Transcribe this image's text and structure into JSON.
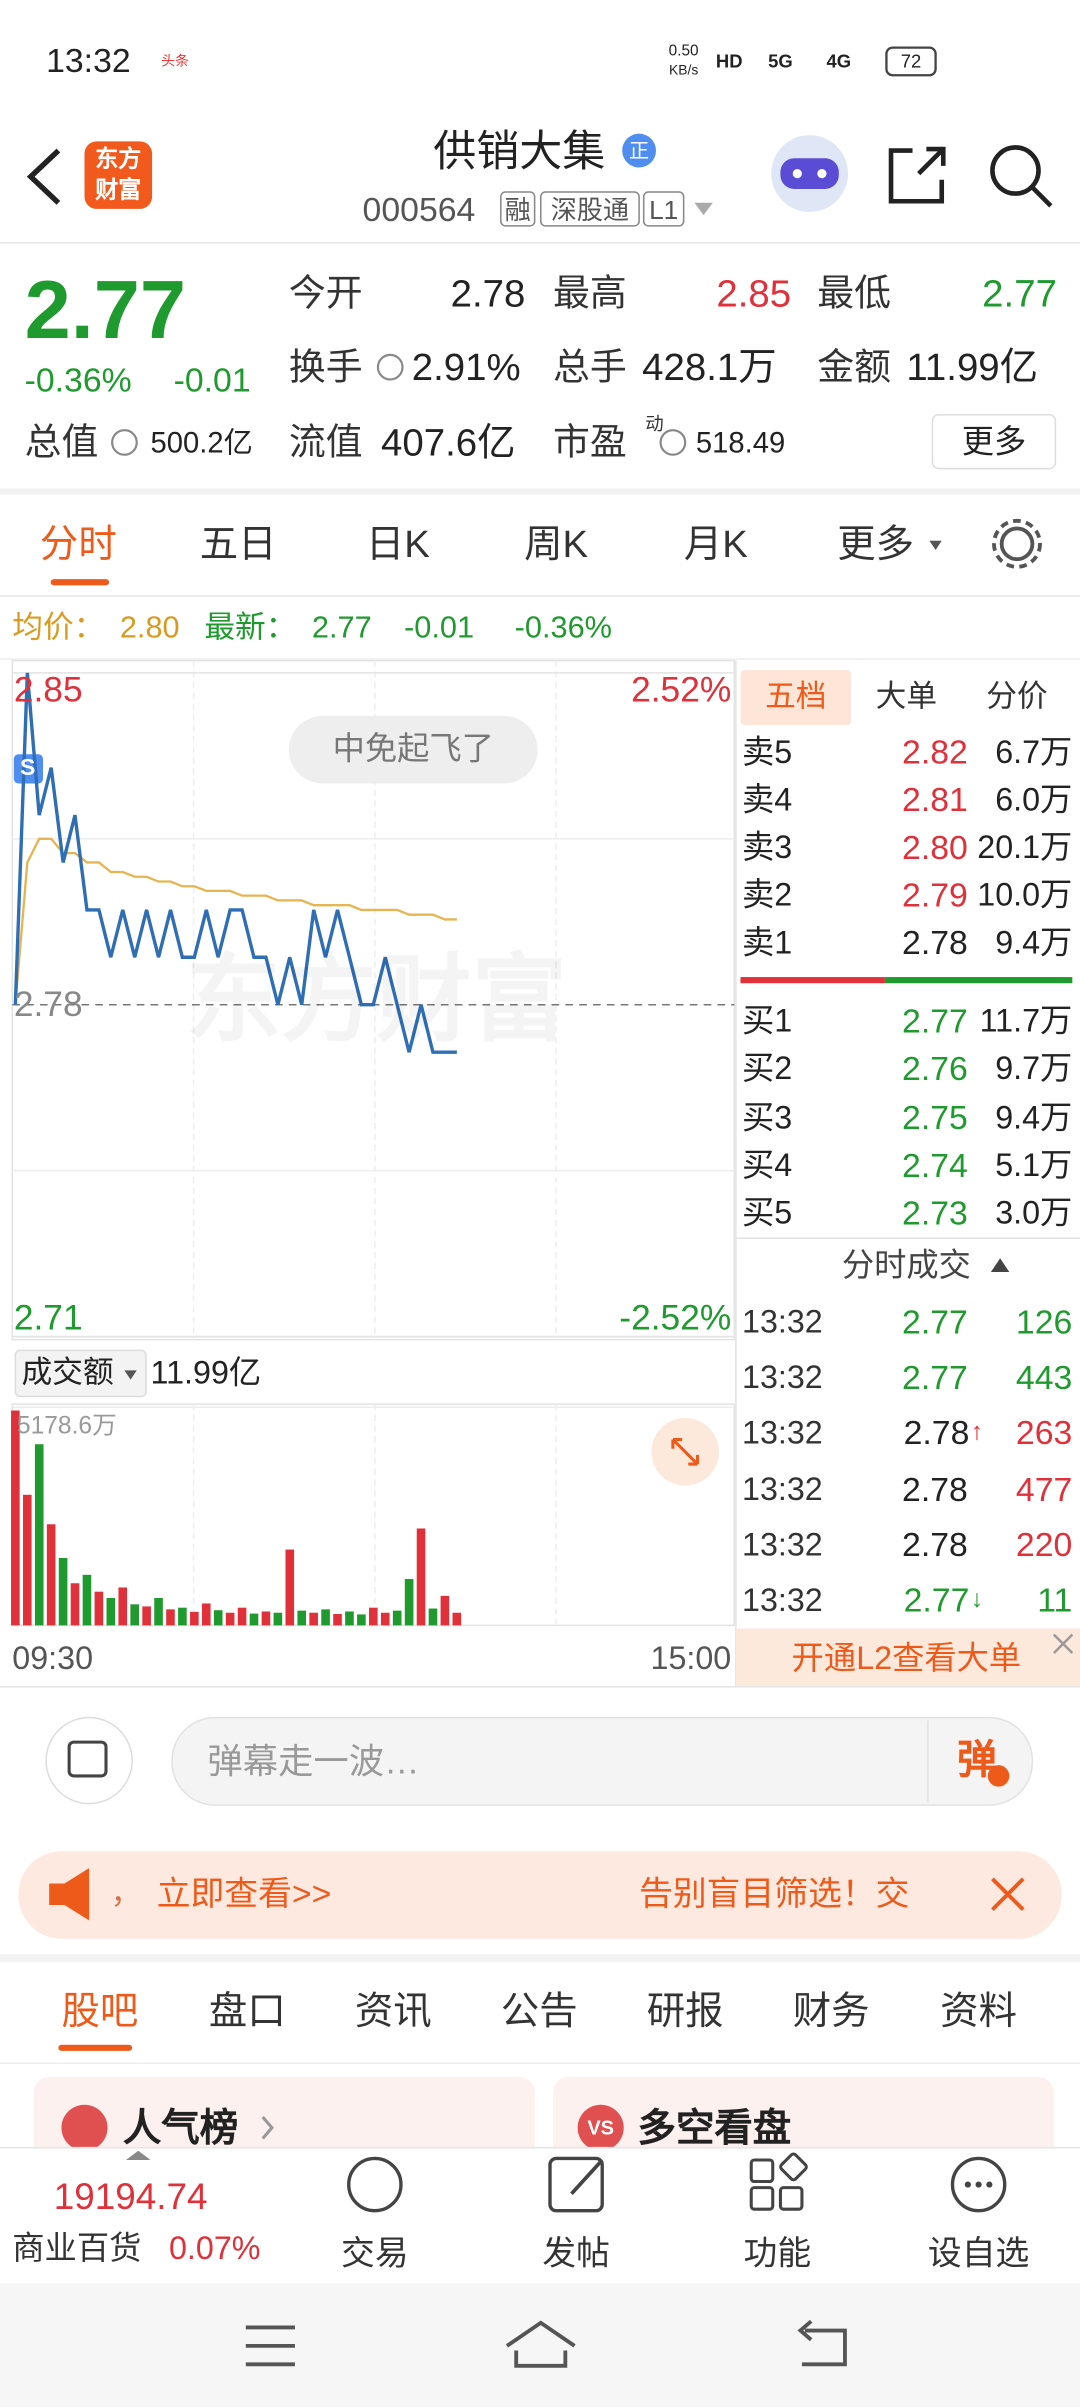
{
  "status_bar": {
    "time": "13:32",
    "badge": "头条",
    "net_speed": "0.50",
    "net_unit": "KB/s",
    "network": [
      "HD",
      "5G",
      "4G"
    ],
    "battery": "72"
  },
  "header": {
    "logo": [
      "东方",
      "财富"
    ],
    "title": "供销大集",
    "title_badge": "正",
    "code": "000564",
    "tags": [
      "融",
      "深股通",
      "L1"
    ]
  },
  "quote": {
    "price": "2.77",
    "change_pct": "-0.36%",
    "change": "-0.01",
    "stats": [
      {
        "label": "今开",
        "value": "2.78",
        "color": "#222222"
      },
      {
        "label": "最高",
        "value": "2.85",
        "color": "#e0303a"
      },
      {
        "label": "最低",
        "value": "2.77",
        "color": "#1f9a2e"
      },
      {
        "label": "换手",
        "value": "2.91%",
        "color": "#222222"
      },
      {
        "label": "总手",
        "value": "428.1万",
        "color": "#222222"
      },
      {
        "label": "金额",
        "value": "11.99亿",
        "color": "#222222"
      },
      {
        "label": "总值",
        "value": "500.2亿",
        "color": "#222222"
      },
      {
        "label": "流值",
        "value": "407.6亿",
        "color": "#222222"
      },
      {
        "label": "市盈",
        "label_sup": "动",
        "value": "518.49",
        "color": "#222222"
      }
    ],
    "more": "更多"
  },
  "chart_tabs": {
    "items": [
      "分时",
      "五日",
      "日K",
      "周K",
      "月K",
      "更多"
    ],
    "active": 0
  },
  "summary": {
    "avg_label": "均价：",
    "avg": "2.80",
    "last_label": "最新：",
    "last": "2.77",
    "change": "-0.01",
    "change_pct": "-0.36%"
  },
  "intraday_chart": {
    "type": "line",
    "color": "#2f6db5",
    "avg_color": "#e6b450",
    "price": [
      2.78,
      2.85,
      2.82,
      2.83,
      2.81,
      2.82,
      2.8,
      2.8,
      2.79,
      2.8,
      2.79,
      2.8,
      2.79,
      2.8,
      2.79,
      2.79,
      2.8,
      2.79,
      2.8,
      2.8,
      2.79,
      2.79,
      2.78,
      2.79,
      2.78,
      2.8,
      2.79,
      2.8,
      2.79,
      2.78,
      2.78,
      2.79,
      2.78,
      2.77,
      2.78,
      2.77,
      2.77,
      2.77
    ],
    "average": [
      2.78,
      2.81,
      2.815,
      2.815,
      2.812,
      2.812,
      2.81,
      2.81,
      2.808,
      2.808,
      2.807,
      2.807,
      2.806,
      2.806,
      2.805,
      2.805,
      2.804,
      2.804,
      2.804,
      2.803,
      2.803,
      2.803,
      2.802,
      2.802,
      2.802,
      2.801,
      2.801,
      2.801,
      2.801,
      2.8,
      2.8,
      2.8,
      2.8,
      2.799,
      2.799,
      2.799,
      2.798,
      2.798
    ],
    "ylim": [
      2.71,
      2.85
    ],
    "yticks": [
      2.85,
      2.78,
      2.71
    ],
    "pct_ticks": [
      "2.52%",
      "-2.52%"
    ],
    "annotation": "中免起飞了",
    "marker": "S",
    "watermark": "东方财富",
    "x_labels": [
      "09:30",
      "15:00"
    ],
    "volume": {
      "label": "成交额",
      "total": "11.99亿",
      "up_color": "#e0303a",
      "down_color": "#1f9a2e",
      "ylim": [
        0,
        5178.6
      ],
      "yticks": [
        {
          "value": 5178.6,
          "label": "5178.6万"
        }
      ],
      "values": [
        5100,
        3100,
        4300,
        2400,
        1600,
        1000,
        1200,
        800,
        650,
        900,
        500,
        450,
        650,
        380,
        420,
        320,
        520,
        360,
        300,
        420,
        280,
        330,
        300,
        1800,
        350,
        300,
        380,
        270,
        330,
        260,
        420,
        300,
        350,
        1100,
        2300,
        400,
        700,
        300
      ]
    }
  },
  "order_panel": {
    "tabs": [
      "五档",
      "大单",
      "分价"
    ],
    "active": 0,
    "asks": [
      {
        "label": "卖5",
        "price": "2.82",
        "volume": "6.7万",
        "color": "#e0303a"
      },
      {
        "label": "卖4",
        "price": "2.81",
        "volume": "6.0万",
        "color": "#e0303a"
      },
      {
        "label": "卖3",
        "price": "2.80",
        "volume": "20.1万",
        "color": "#e0303a"
      },
      {
        "label": "卖2",
        "price": "2.79",
        "volume": "10.0万",
        "color": "#e0303a"
      },
      {
        "label": "卖1",
        "price": "2.78",
        "volume": "9.4万",
        "color": "#222222"
      }
    ],
    "bids": [
      {
        "label": "买1",
        "price": "2.77",
        "volume": "11.7万",
        "color": "#1f9a2e"
      },
      {
        "label": "买2",
        "price": "2.76",
        "volume": "9.7万",
        "color": "#1f9a2e"
      },
      {
        "label": "买3",
        "price": "2.75",
        "volume": "9.4万",
        "color": "#1f9a2e"
      },
      {
        "label": "买4",
        "price": "2.74",
        "volume": "5.1万",
        "color": "#1f9a2e"
      },
      {
        "label": "买5",
        "price": "2.73",
        "volume": "3.0万",
        "color": "#1f9a2e"
      }
    ],
    "trades_title": "分时成交",
    "trades": [
      {
        "time": "13:32",
        "price": "2.77",
        "volume": "126",
        "color": "#1f9a2e",
        "volume_color": "#1f9a2e"
      },
      {
        "time": "13:32",
        "price": "2.77",
        "volume": "443",
        "color": "#1f9a2e",
        "volume_color": "#1f9a2e"
      },
      {
        "time": "13:32",
        "price": "2.78",
        "arrow": "↑",
        "volume": "263",
        "color": "#222222",
        "volume_color": "#e0303a"
      },
      {
        "time": "13:32",
        "price": "2.78",
        "volume": "477",
        "color": "#222222",
        "volume_color": "#e0303a"
      },
      {
        "time": "13:32",
        "price": "2.78",
        "volume": "220",
        "color": "#222222",
        "volume_color": "#e0303a"
      },
      {
        "time": "13:32",
        "price": "2.77",
        "arrow": "↓",
        "volume": "11",
        "color": "#1f9a2e",
        "volume_color": "#1f9a2e"
      }
    ],
    "l2": "开通L2查看大单"
  },
  "comment": {
    "placeholder": "弹幕走一波…",
    "button": "弹"
  },
  "banner": {
    "prefix": "，",
    "link": "立即查看>>",
    "right": "告别盲目筛选！交"
  },
  "section_tabs": {
    "items": [
      "股吧",
      "盘口",
      "资讯",
      "公告",
      "研报",
      "财务",
      "资料"
    ],
    "active": 0
  },
  "cards": [
    {
      "title": "人气榜"
    },
    {
      "title": "多空看盘",
      "icon": "VS"
    }
  ],
  "bottom_bar": {
    "index_value": "19194.74",
    "index_name": "商业百货",
    "index_change": "0.07%",
    "actions": [
      "交易",
      "发帖",
      "功能",
      "设自选"
    ]
  }
}
